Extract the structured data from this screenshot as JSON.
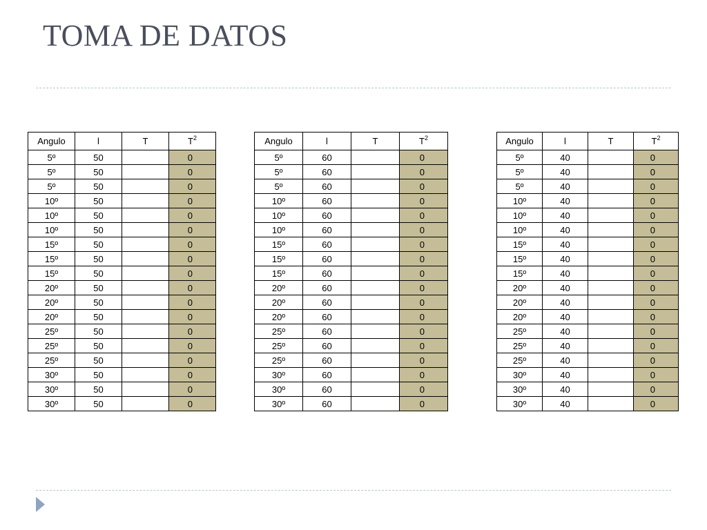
{
  "slide": {
    "title": "TOMA DE DATOS"
  },
  "colors": {
    "t2_fill": "#c4bd97",
    "title": "#4a4e5c",
    "rule": "#b7c6c7",
    "bullet": "#8fa4c3"
  },
  "tables": [
    {
      "headers": {
        "angulo": "Angulo",
        "l": "l",
        "t": "T",
        "t2_base": "T",
        "t2_exp": "2"
      },
      "rows": [
        {
          "angulo": "5º",
          "l": "50",
          "t": "",
          "t2": "0"
        },
        {
          "angulo": "5º",
          "l": "50",
          "t": "",
          "t2": "0"
        },
        {
          "angulo": "5º",
          "l": "50",
          "t": "",
          "t2": "0"
        },
        {
          "angulo": "10º",
          "l": "50",
          "t": "",
          "t2": "0"
        },
        {
          "angulo": "10º",
          "l": "50",
          "t": "",
          "t2": "0"
        },
        {
          "angulo": "10º",
          "l": "50",
          "t": "",
          "t2": "0"
        },
        {
          "angulo": "15º",
          "l": "50",
          "t": "",
          "t2": "0"
        },
        {
          "angulo": "15º",
          "l": "50",
          "t": "",
          "t2": "0"
        },
        {
          "angulo": "15º",
          "l": "50",
          "t": "",
          "t2": "0"
        },
        {
          "angulo": "20º",
          "l": "50",
          "t": "",
          "t2": "0"
        },
        {
          "angulo": "20º",
          "l": "50",
          "t": "",
          "t2": "0"
        },
        {
          "angulo": "20º",
          "l": "50",
          "t": "",
          "t2": "0"
        },
        {
          "angulo": "25º",
          "l": "50",
          "t": "",
          "t2": "0"
        },
        {
          "angulo": "25º",
          "l": "50",
          "t": "",
          "t2": "0"
        },
        {
          "angulo": "25º",
          "l": "50",
          "t": "",
          "t2": "0"
        },
        {
          "angulo": "30º",
          "l": "50",
          "t": "",
          "t2": "0"
        },
        {
          "angulo": "30º",
          "l": "50",
          "t": "",
          "t2": "0"
        },
        {
          "angulo": "30º",
          "l": "50",
          "t": "",
          "t2": "0"
        }
      ]
    },
    {
      "headers": {
        "angulo": "Angulo",
        "l": "l",
        "t": "T",
        "t2_base": "T",
        "t2_exp": "2"
      },
      "rows": [
        {
          "angulo": "5º",
          "l": "60",
          "t": "",
          "t2": "0"
        },
        {
          "angulo": "5º",
          "l": "60",
          "t": "",
          "t2": "0"
        },
        {
          "angulo": "5º",
          "l": "60",
          "t": "",
          "t2": "0"
        },
        {
          "angulo": "10º",
          "l": "60",
          "t": "",
          "t2": "0"
        },
        {
          "angulo": "10º",
          "l": "60",
          "t": "",
          "t2": "0"
        },
        {
          "angulo": "10º",
          "l": "60",
          "t": "",
          "t2": "0"
        },
        {
          "angulo": "15º",
          "l": "60",
          "t": "",
          "t2": "0"
        },
        {
          "angulo": "15º",
          "l": "60",
          "t": "",
          "t2": "0"
        },
        {
          "angulo": "15º",
          "l": "60",
          "t": "",
          "t2": "0"
        },
        {
          "angulo": "20º",
          "l": "60",
          "t": "",
          "t2": "0"
        },
        {
          "angulo": "20º",
          "l": "60",
          "t": "",
          "t2": "0"
        },
        {
          "angulo": "20º",
          "l": "60",
          "t": "",
          "t2": "0"
        },
        {
          "angulo": "25º",
          "l": "60",
          "t": "",
          "t2": "0"
        },
        {
          "angulo": "25º",
          "l": "60",
          "t": "",
          "t2": "0"
        },
        {
          "angulo": "25º",
          "l": "60",
          "t": "",
          "t2": "0"
        },
        {
          "angulo": "30º",
          "l": "60",
          "t": "",
          "t2": "0"
        },
        {
          "angulo": "30º",
          "l": "60",
          "t": "",
          "t2": "0"
        },
        {
          "angulo": "30º",
          "l": "60",
          "t": "",
          "t2": "0"
        }
      ]
    },
    {
      "headers": {
        "angulo": "Angulo",
        "l": "l",
        "t": "T",
        "t2_base": "T",
        "t2_exp": "2"
      },
      "rows": [
        {
          "angulo": "5º",
          "l": "40",
          "t": "",
          "t2": "0"
        },
        {
          "angulo": "5º",
          "l": "40",
          "t": "",
          "t2": "0"
        },
        {
          "angulo": "5º",
          "l": "40",
          "t": "",
          "t2": "0"
        },
        {
          "angulo": "10º",
          "l": "40",
          "t": "",
          "t2": "0"
        },
        {
          "angulo": "10º",
          "l": "40",
          "t": "",
          "t2": "0"
        },
        {
          "angulo": "10º",
          "l": "40",
          "t": "",
          "t2": "0"
        },
        {
          "angulo": "15º",
          "l": "40",
          "t": "",
          "t2": "0"
        },
        {
          "angulo": "15º",
          "l": "40",
          "t": "",
          "t2": "0"
        },
        {
          "angulo": "15º",
          "l": "40",
          "t": "",
          "t2": "0"
        },
        {
          "angulo": "20º",
          "l": "40",
          "t": "",
          "t2": "0"
        },
        {
          "angulo": "20º",
          "l": "40",
          "t": "",
          "t2": "0"
        },
        {
          "angulo": "20º",
          "l": "40",
          "t": "",
          "t2": "0"
        },
        {
          "angulo": "25º",
          "l": "40",
          "t": "",
          "t2": "0"
        },
        {
          "angulo": "25º",
          "l": "40",
          "t": "",
          "t2": "0"
        },
        {
          "angulo": "25º",
          "l": "40",
          "t": "",
          "t2": "0"
        },
        {
          "angulo": "30º",
          "l": "40",
          "t": "",
          "t2": "0"
        },
        {
          "angulo": "30º",
          "l": "40",
          "t": "",
          "t2": "0"
        },
        {
          "angulo": "30º",
          "l": "40",
          "t": "",
          "t2": "0"
        }
      ]
    }
  ]
}
